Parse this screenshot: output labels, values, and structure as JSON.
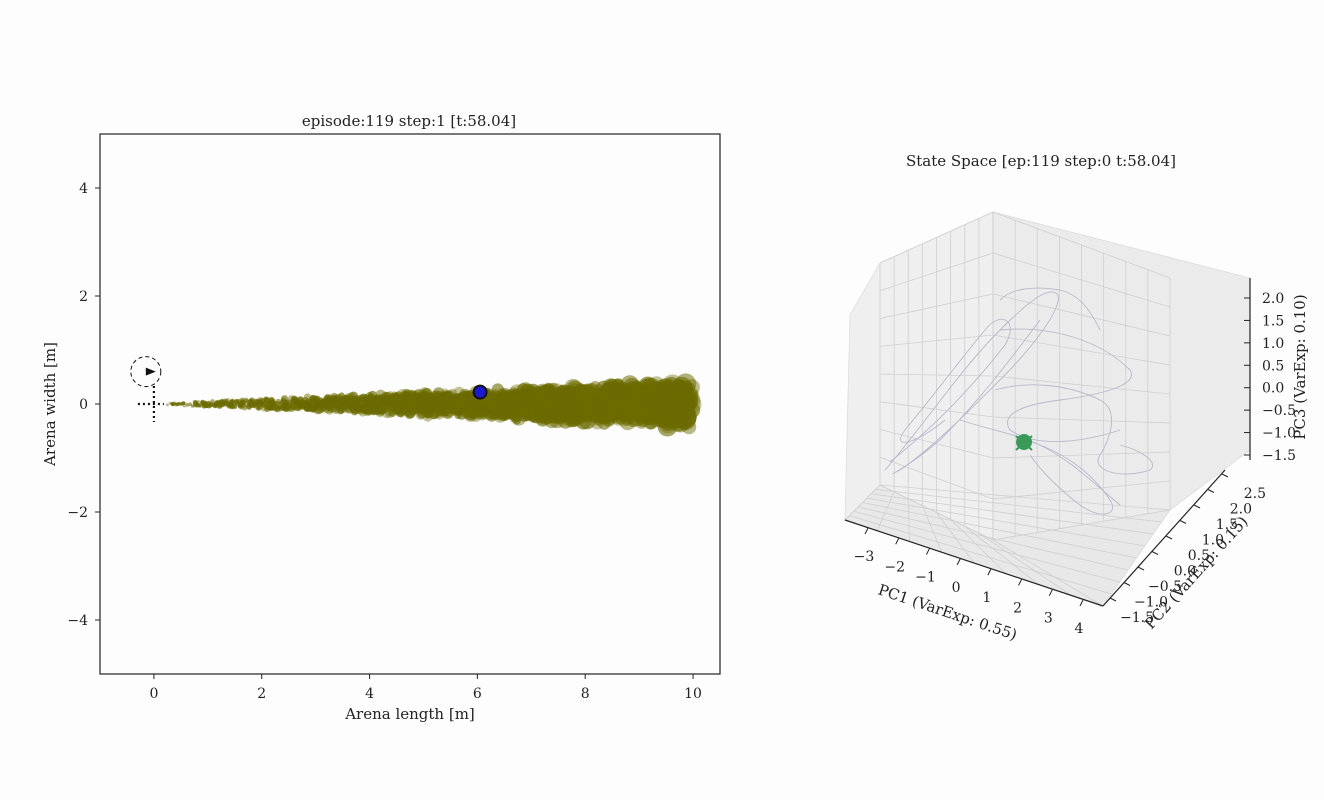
{
  "chart_data": [
    {
      "type": "scatter",
      "title": "episode:119 step:1 [t:58.04]",
      "xlabel": "Arena length [m]",
      "ylabel": "Arena width [m]",
      "xlim": [
        -1,
        10.5
      ],
      "ylim": [
        -5,
        5
      ],
      "xticks": [
        0,
        2,
        4,
        6,
        8,
        10
      ],
      "yticks": [
        -4,
        -2,
        0,
        2,
        4
      ],
      "xtick_labels": [
        "0",
        "2",
        "4",
        "6",
        "8",
        "10"
      ],
      "ytick_labels": [
        "−4",
        "−2",
        "0",
        "2",
        "4"
      ],
      "plume_color": "#6b6b00",
      "plume": {
        "x_start": 0.2,
        "x_end": 10.0,
        "half_width_start": 0.02,
        "half_width_end": 0.45,
        "size_start": 1.5,
        "size_end": 11
      },
      "agent": {
        "x": 6.05,
        "y": 0.22,
        "color": "#1a1acc"
      },
      "source": {
        "x": 0.0,
        "y": 0.0
      },
      "heading_marker": {
        "x": -0.15,
        "y": 0.6
      }
    },
    {
      "type": "line3d",
      "title": "State Space [ep:119 step:0 t:58.04]",
      "xlabel": "PC1 (VarExp: 0.55)",
      "ylabel": "PC2 (VarExp: 0.15)",
      "zlabel": "PC3 (VarExp: 0.10)",
      "xticks": [
        "−3",
        "−2",
        "−1",
        "0",
        "1",
        "2",
        "3",
        "4"
      ],
      "yticks": [
        "−1.5",
        "−1.0",
        "−0.5",
        "0.0",
        "0.5",
        "1.0",
        "1.5",
        "2.0",
        "2.5"
      ],
      "zticks": [
        "−1.5",
        "−1.0",
        "−0.5",
        "0.0",
        "0.5",
        "1.0",
        "1.5",
        "2.0"
      ],
      "marker_color": "#3a9a5a",
      "line_color": "#b8b8cc"
    }
  ]
}
